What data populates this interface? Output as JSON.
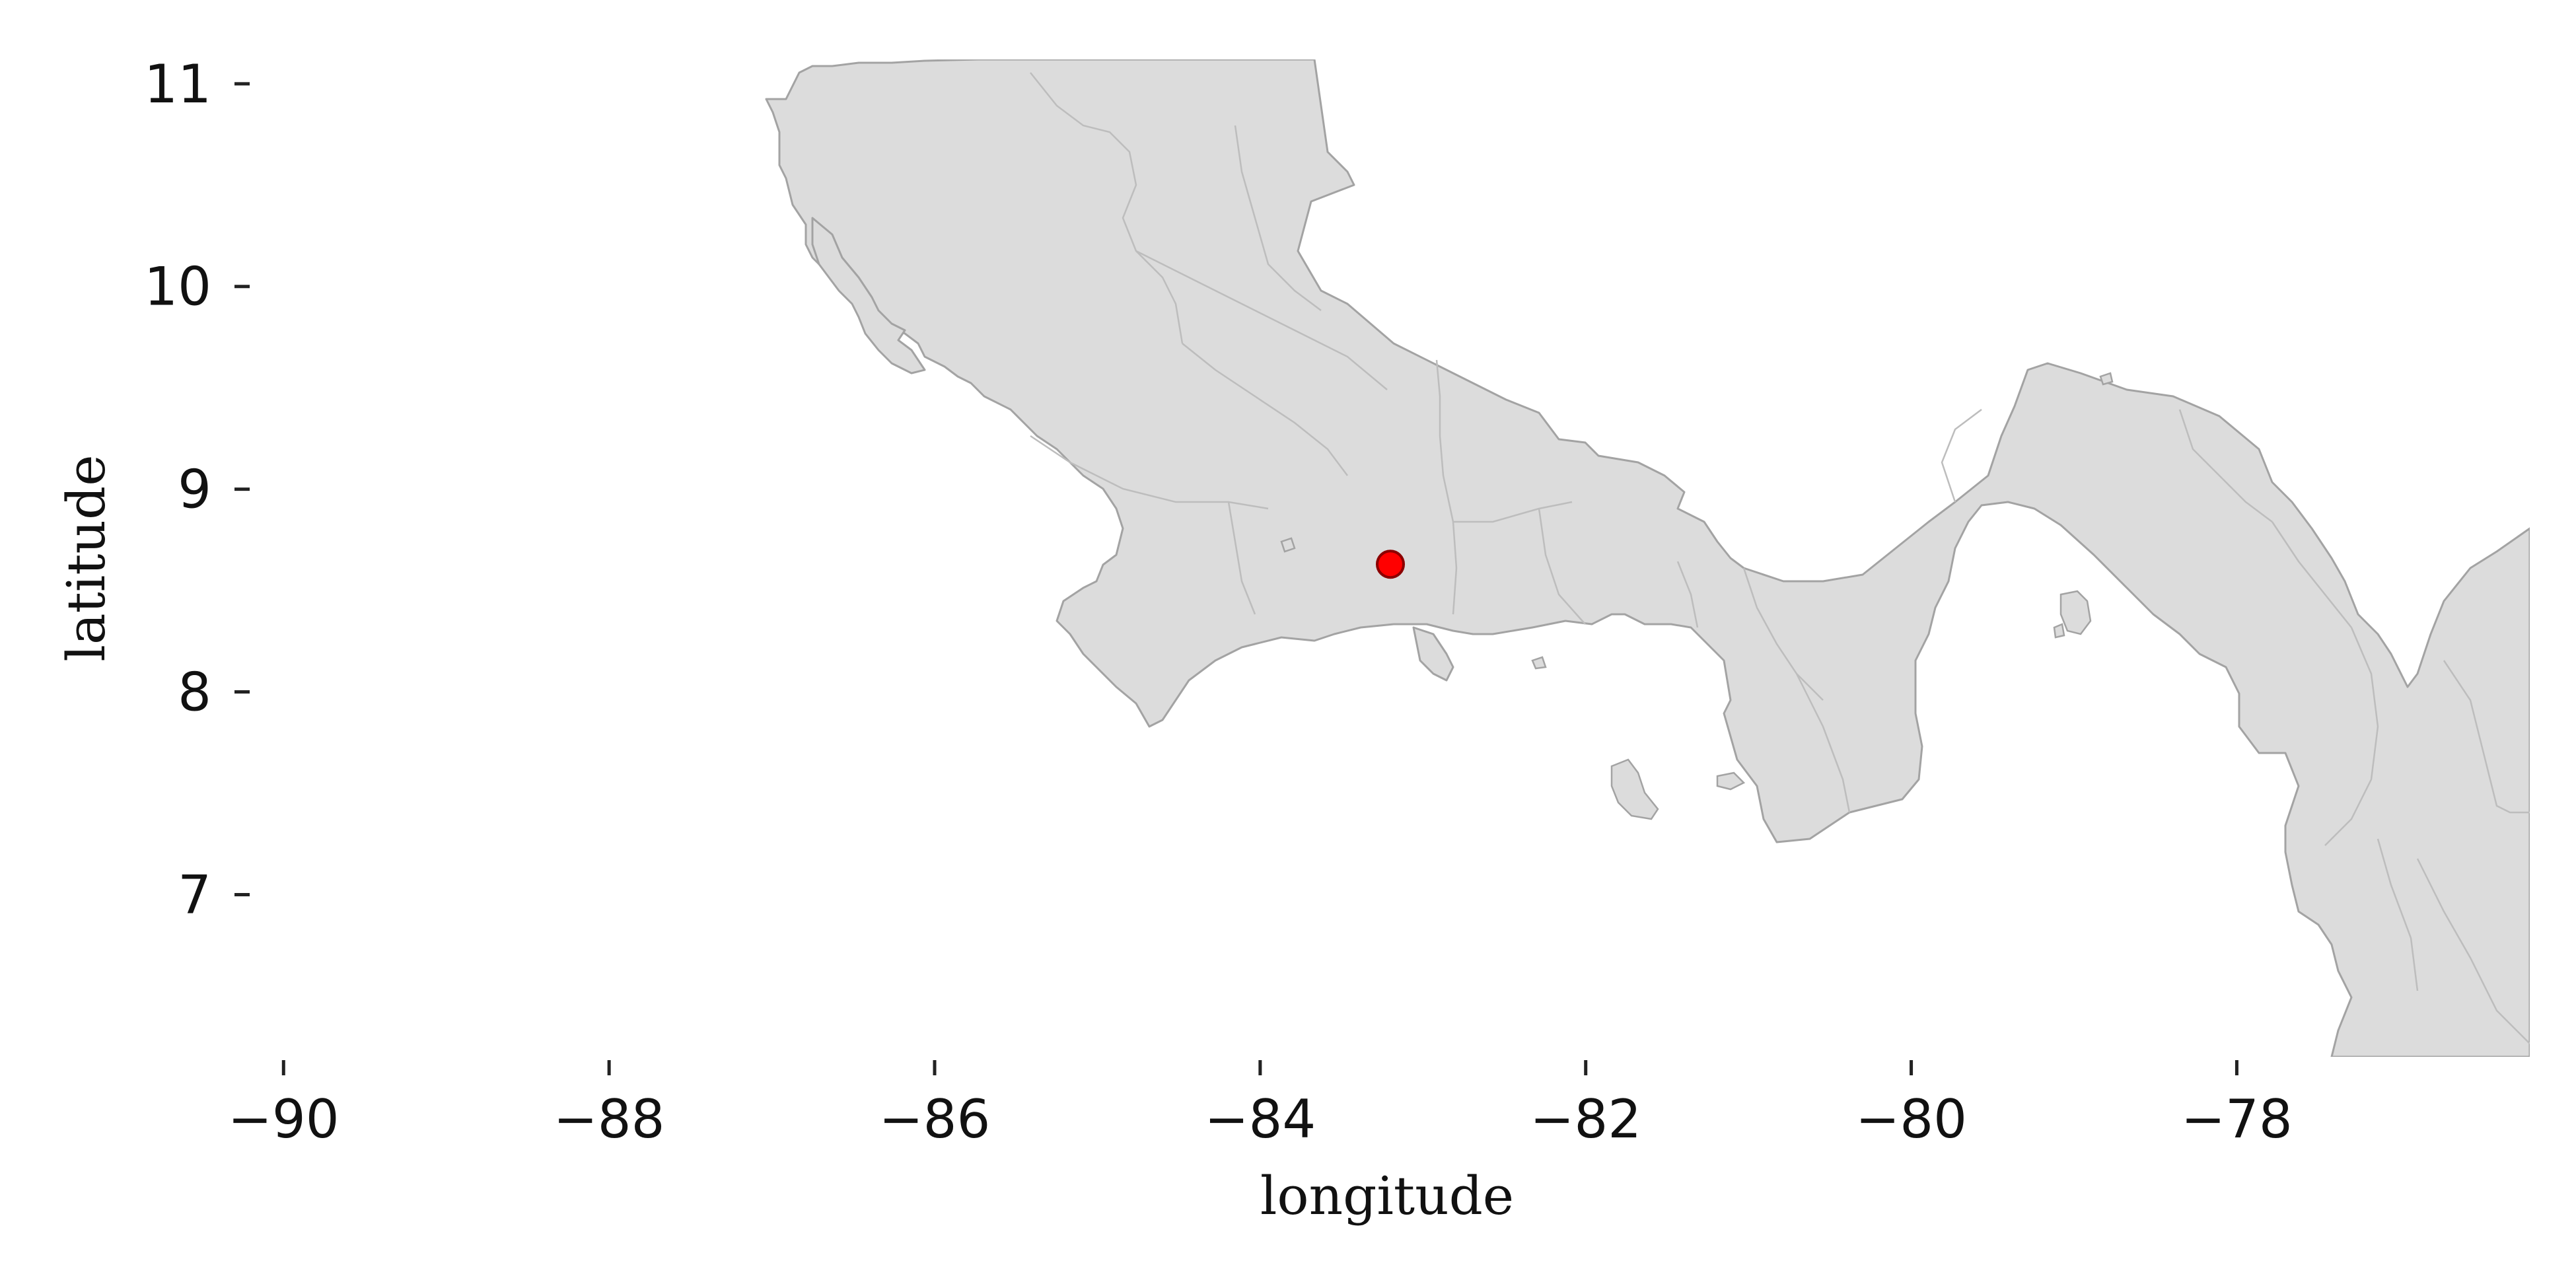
{
  "map": {
    "type": "location-map",
    "region_shown": "Costa Rica / Panama isthmus",
    "xlabel": "longitude",
    "ylabel": "latitude",
    "xlim": [
      -90.2,
      -76.2
    ],
    "ylim": [
      6.2,
      11.12
    ],
    "x_ticks": [
      -90,
      -88,
      -86,
      -84,
      -82,
      -80,
      -78
    ],
    "y_ticks": [
      7,
      8,
      9,
      10,
      11
    ],
    "grid": false,
    "colors": {
      "land": "#dcdcdc",
      "coastline": "#a3a3a3",
      "admin_borders": "#bdbdbd",
      "marker": "#ff0000",
      "marker_edge": "#8b0000"
    },
    "marker": {
      "lon": -83.2,
      "lat": 8.63
    }
  }
}
